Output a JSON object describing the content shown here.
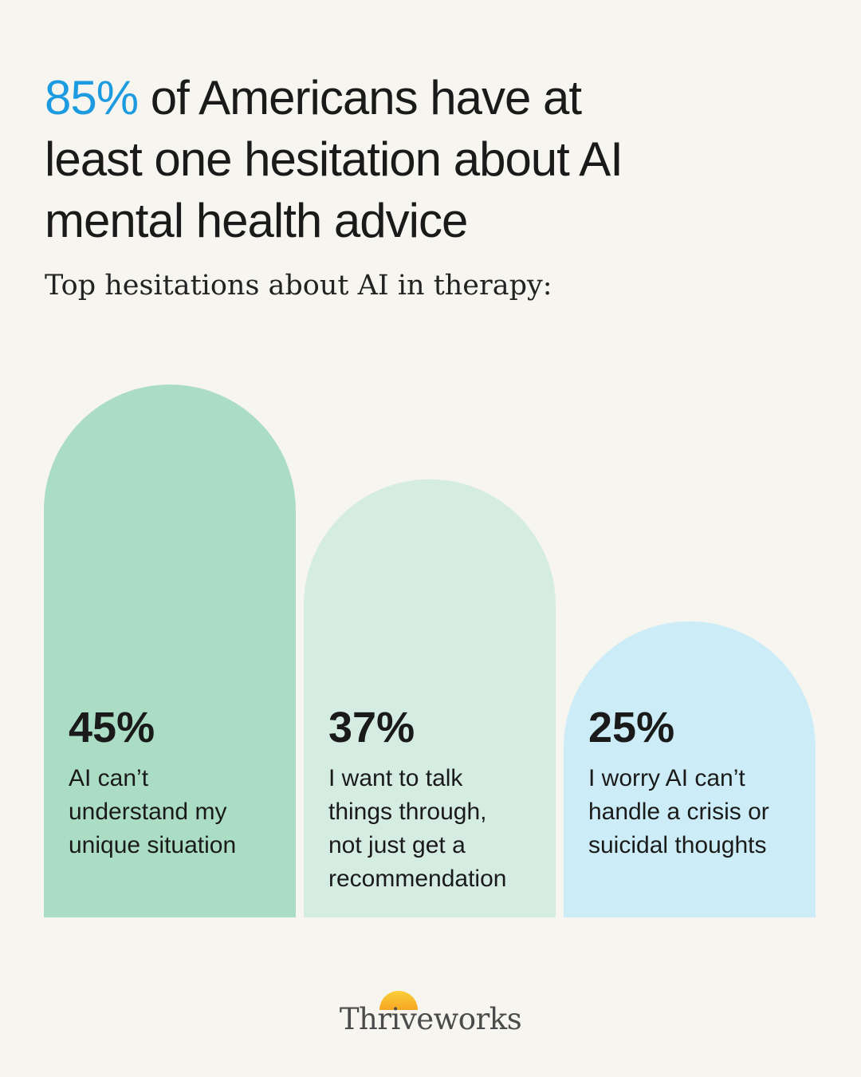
{
  "headline": {
    "highlight": "85%",
    "rest_line1": " of Americans have at",
    "line2": "least one hesitation about AI",
    "line3": "mental health advice",
    "highlight_color": "#1D9BE0"
  },
  "subtitle": "Top hesitations about AI in therapy:",
  "chart_data": {
    "type": "bar",
    "categories": [
      "AI can’t understand my unique situation",
      "I want to talk things through, not just get a recommendation",
      "I worry AI can’t handle a crisis or suicidal thoughts"
    ],
    "values": [
      45,
      37,
      25
    ],
    "value_labels": [
      "45%",
      "37%",
      "25%"
    ],
    "label_lines": [
      [
        "AI can’t",
        "understand my",
        "unique situation"
      ],
      [
        "I want to talk",
        "things through,",
        "not just get a",
        "recommendation"
      ],
      [
        "I worry AI can’t",
        "handle a crisis or",
        "suicidal thoughts"
      ]
    ],
    "bar_colors": [
      "#ABDDC5",
      "#D5ECE2",
      "#CCEDF7"
    ],
    "ylim": [
      0,
      45
    ],
    "bar_shape": "rounded-top arch"
  },
  "brand": {
    "name": "Thriveworks",
    "sun_colors": [
      "#FBD03A",
      "#F6A623"
    ]
  }
}
